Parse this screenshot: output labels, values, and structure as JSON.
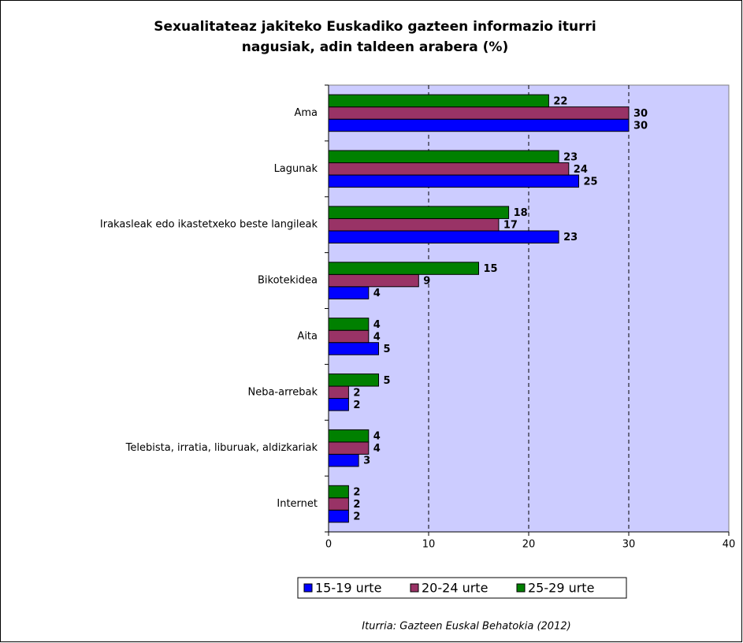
{
  "chart_data": {
    "type": "bar",
    "orientation": "horizontal",
    "title": [
      "Sexualitateaz jakiteko Euskadiko gazteen informazio iturri",
      "nagusiak, adin taldeen arabera  (%)"
    ],
    "categories": [
      "Ama",
      "Lagunak",
      "Irakasleak edo ikastetxeko beste langileak",
      "Bikotekidea",
      "Aita",
      "Neba-arrebak",
      "Telebista, irratia, liburuak, aldizkariak",
      "Internet"
    ],
    "series": [
      {
        "name": "15-19 urte",
        "color": "#0000ff",
        "values": [
          30,
          25,
          23,
          4,
          5,
          2,
          3,
          2
        ]
      },
      {
        "name": "20-24 urte",
        "color": "#993366",
        "values": [
          30,
          24,
          17,
          9,
          4,
          2,
          4,
          2
        ]
      },
      {
        "name": "25-29 urte",
        "color": "#008000",
        "values": [
          22,
          23,
          18,
          15,
          4,
          5,
          4,
          2
        ]
      }
    ],
    "xlim": [
      0,
      40
    ],
    "xticks": [
      0,
      10,
      20,
      30,
      40
    ],
    "grid": true,
    "legend": "bottom",
    "plot_background": "#ccccff",
    "source": "Iturria: Gazteen Euskal Behatokia (2012)"
  }
}
